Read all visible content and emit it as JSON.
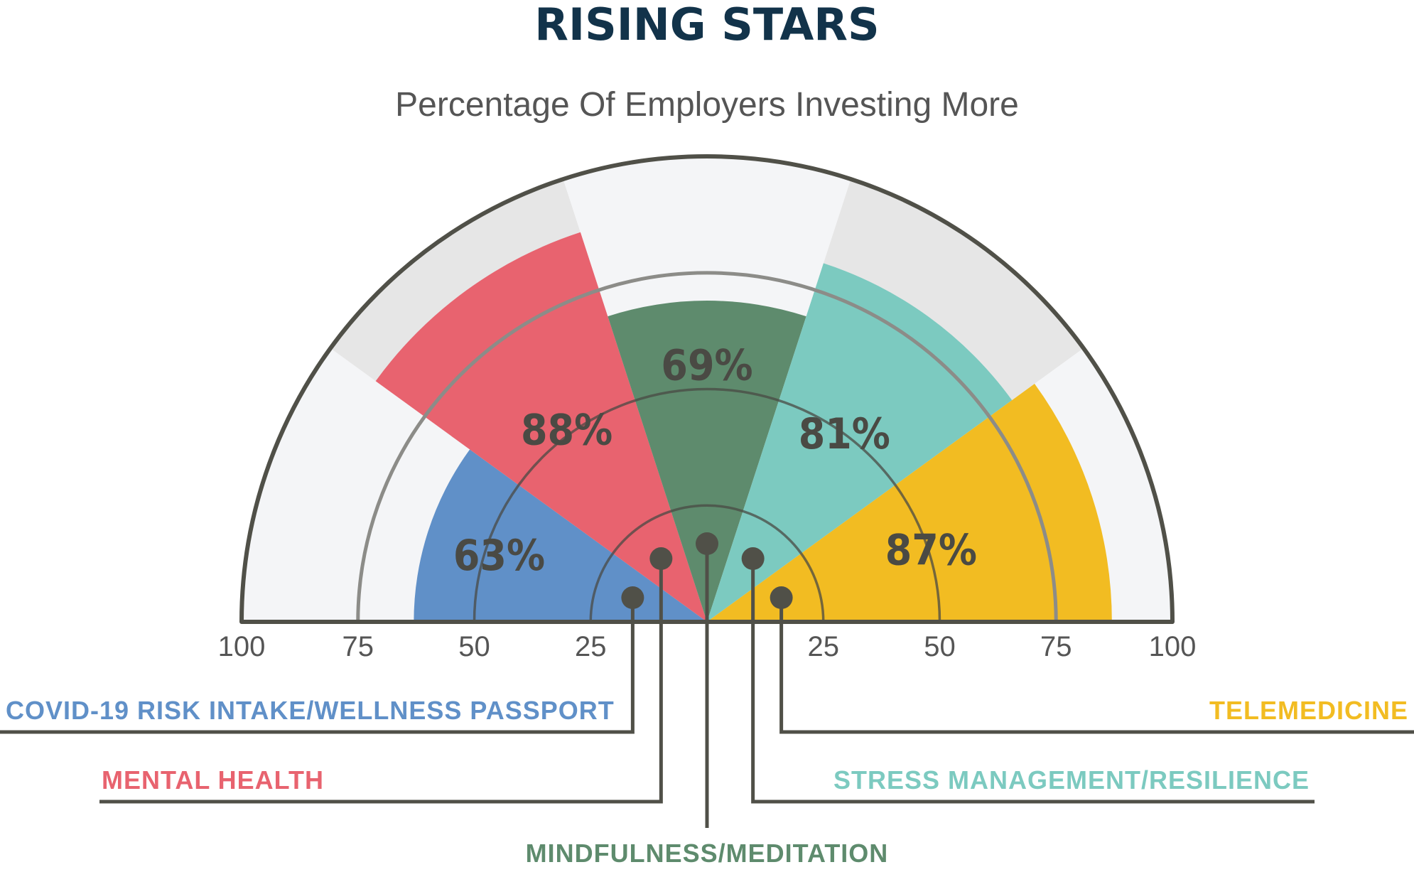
{
  "chart_data": {
    "type": "polar-bar",
    "title": "RISING STARS",
    "subtitle": "Percentage Of Employers Investing More",
    "axis_range": [
      0,
      100
    ],
    "tick_labels_left": [
      "100",
      "75",
      "50",
      "25"
    ],
    "tick_labels_right": [
      "25",
      "50",
      "75",
      "100"
    ],
    "tick_values_left": [
      100,
      75,
      50,
      25
    ],
    "tick_values_right": [
      25,
      50,
      75,
      100
    ],
    "ring_values": [
      25,
      50,
      75
    ],
    "series": [
      {
        "name": "COVID-19 RISK INTAKE/WELLNESS PASSPORT",
        "value": 63,
        "label": "63%",
        "color": "#6090c8"
      },
      {
        "name": "MENTAL HEALTH",
        "value": 88,
        "label": "88%",
        "color": "#e8636f"
      },
      {
        "name": "MINDFULNESS/MEDITATION",
        "value": 69,
        "label": "69%",
        "color": "#5e8b6d"
      },
      {
        "name": "STRESS MANAGEMENT/RESILIENCE",
        "value": 81,
        "label": "81%",
        "color": "#7ccac0"
      },
      {
        "name": "TELEMEDICINE",
        "value": 87,
        "label": "87%",
        "color": "#f2bc22"
      }
    ],
    "colors": {
      "title": "#12334a",
      "text": "#555555",
      "outline": "#505048",
      "band_light": "#f4f5f7",
      "band_dark": "#e6e6e6",
      "ring": "#4a4a44"
    }
  }
}
